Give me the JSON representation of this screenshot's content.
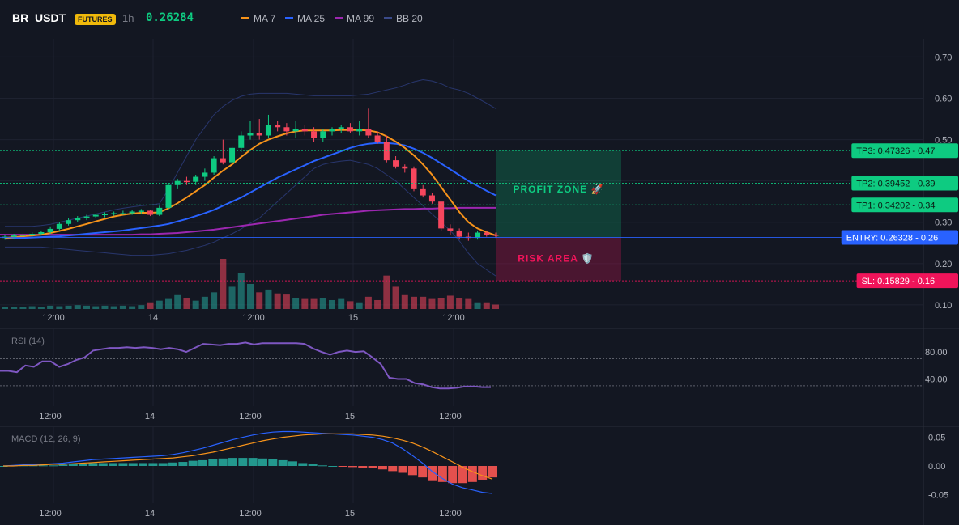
{
  "header": {
    "symbol": "BR_USDT",
    "badge": "FUTURES",
    "timeframe": "1h",
    "last_price": "0.26284",
    "legend": [
      {
        "label": "MA 7",
        "color": "#f7931a"
      },
      {
        "label": "MA 25",
        "color": "#2962ff"
      },
      {
        "label": "MA 99",
        "color": "#9c27b0"
      },
      {
        "label": "BB 20",
        "color": "#3a4a8a"
      }
    ]
  },
  "colors": {
    "up": "#26a69a",
    "up_bright": "#0ecb81",
    "down": "#f6465d",
    "ma7": "#f7931a",
    "ma25": "#2962ff",
    "ma99": "#9c27b0",
    "bb": "#2b3a75",
    "entry": "#2962ff",
    "sl": "#f0145a",
    "tp": "#0ecb81"
  },
  "time_labels": [
    "12:00",
    "14",
    "12:00",
    "15",
    "12:00"
  ],
  "chart_data": [
    {
      "type": "candlestick",
      "title": "",
      "ylim": [
        0.09,
        0.74
      ],
      "y_ticks": [
        "0.70",
        "0.60",
        "0.50",
        "0.40",
        "0.30",
        "0.20",
        "0.10"
      ],
      "candles_ohlc": [
        [
          0.262,
          0.27,
          0.258,
          0.265
        ],
        [
          0.265,
          0.272,
          0.26,
          0.268
        ],
        [
          0.268,
          0.274,
          0.262,
          0.27
        ],
        [
          0.27,
          0.276,
          0.264,
          0.272
        ],
        [
          0.272,
          0.28,
          0.268,
          0.276
        ],
        [
          0.276,
          0.29,
          0.272,
          0.284
        ],
        [
          0.284,
          0.3,
          0.28,
          0.296
        ],
        [
          0.296,
          0.31,
          0.292,
          0.305
        ],
        [
          0.305,
          0.315,
          0.3,
          0.31
        ],
        [
          0.31,
          0.318,
          0.305,
          0.314
        ],
        [
          0.314,
          0.32,
          0.31,
          0.318
        ],
        [
          0.318,
          0.324,
          0.312,
          0.32
        ],
        [
          0.32,
          0.326,
          0.316,
          0.322
        ],
        [
          0.322,
          0.328,
          0.318,
          0.322
        ],
        [
          0.322,
          0.33,
          0.318,
          0.326
        ],
        [
          0.326,
          0.332,
          0.32,
          0.328
        ],
        [
          0.328,
          0.33,
          0.315,
          0.318
        ],
        [
          0.318,
          0.34,
          0.315,
          0.335
        ],
        [
          0.335,
          0.395,
          0.33,
          0.39
        ],
        [
          0.39,
          0.405,
          0.38,
          0.4
        ],
        [
          0.4,
          0.41,
          0.39,
          0.398
        ],
        [
          0.398,
          0.415,
          0.39,
          0.41
        ],
        [
          0.41,
          0.43,
          0.4,
          0.42
        ],
        [
          0.42,
          0.46,
          0.415,
          0.455
        ],
        [
          0.455,
          0.5,
          0.44,
          0.445
        ],
        [
          0.445,
          0.485,
          0.44,
          0.48
        ],
        [
          0.48,
          0.52,
          0.47,
          0.51
        ],
        [
          0.51,
          0.545,
          0.5,
          0.515
        ],
        [
          0.515,
          0.55,
          0.5,
          0.51
        ],
        [
          0.51,
          0.56,
          0.505,
          0.535
        ],
        [
          0.535,
          0.545,
          0.52,
          0.53
        ],
        [
          0.53,
          0.54,
          0.51,
          0.52
        ],
        [
          0.52,
          0.545,
          0.505,
          0.525
        ],
        [
          0.525,
          0.535,
          0.51,
          0.52
        ],
        [
          0.52,
          0.53,
          0.495,
          0.505
        ],
        [
          0.505,
          0.525,
          0.495,
          0.52
        ],
        [
          0.52,
          0.53,
          0.51,
          0.525
        ],
        [
          0.525,
          0.535,
          0.515,
          0.53
        ],
        [
          0.53,
          0.54,
          0.515,
          0.52
        ],
        [
          0.52,
          0.545,
          0.51,
          0.525
        ],
        [
          0.525,
          0.575,
          0.505,
          0.51
        ],
        [
          0.51,
          0.52,
          0.49,
          0.495
        ],
        [
          0.495,
          0.51,
          0.445,
          0.45
        ],
        [
          0.45,
          0.46,
          0.43,
          0.435
        ],
        [
          0.435,
          0.44,
          0.42,
          0.43
        ],
        [
          0.43,
          0.435,
          0.375,
          0.38
        ],
        [
          0.38,
          0.39,
          0.36,
          0.365
        ],
        [
          0.365,
          0.37,
          0.345,
          0.35
        ],
        [
          0.35,
          0.345,
          0.28,
          0.285
        ],
        [
          0.285,
          0.295,
          0.27,
          0.28
        ],
        [
          0.28,
          0.285,
          0.258,
          0.265
        ],
        [
          0.265,
          0.275,
          0.255,
          0.262
        ],
        [
          0.262,
          0.28,
          0.258,
          0.275
        ],
        [
          0.275,
          0.28,
          0.265,
          0.27
        ],
        [
          0.27,
          0.275,
          0.262,
          0.268
        ]
      ],
      "ma7": [
        0.262,
        0.264,
        0.266,
        0.268,
        0.27,
        0.274,
        0.279,
        0.284,
        0.29,
        0.296,
        0.302,
        0.308,
        0.314,
        0.318,
        0.321,
        0.323,
        0.323,
        0.324,
        0.334,
        0.346,
        0.36,
        0.375,
        0.39,
        0.408,
        0.425,
        0.44,
        0.458,
        0.475,
        0.49,
        0.5,
        0.508,
        0.515,
        0.52,
        0.522,
        0.522,
        0.522,
        0.522,
        0.523,
        0.523,
        0.523,
        0.522,
        0.518,
        0.508,
        0.495,
        0.48,
        0.462,
        0.44,
        0.415,
        0.385,
        0.355,
        0.325,
        0.3,
        0.285,
        0.276,
        0.268
      ],
      "ma25": [
        0.26,
        0.261,
        0.262,
        0.263,
        0.264,
        0.265,
        0.266,
        0.268,
        0.27,
        0.272,
        0.274,
        0.276,
        0.278,
        0.28,
        0.283,
        0.286,
        0.289,
        0.292,
        0.296,
        0.302,
        0.308,
        0.315,
        0.322,
        0.33,
        0.34,
        0.35,
        0.36,
        0.372,
        0.384,
        0.396,
        0.408,
        0.418,
        0.428,
        0.438,
        0.448,
        0.456,
        0.464,
        0.472,
        0.48,
        0.486,
        0.49,
        0.492,
        0.492,
        0.49,
        0.486,
        0.478,
        0.468,
        0.456,
        0.442,
        0.428,
        0.414,
        0.4,
        0.388,
        0.376,
        0.365
      ],
      "ma99": [
        0.27,
        0.27,
        0.27,
        0.27,
        0.27,
        0.27,
        0.27,
        0.27,
        0.27,
        0.27,
        0.27,
        0.27,
        0.27,
        0.27,
        0.27,
        0.271,
        0.271,
        0.272,
        0.273,
        0.274,
        0.276,
        0.278,
        0.28,
        0.282,
        0.285,
        0.288,
        0.291,
        0.294,
        0.297,
        0.3,
        0.303,
        0.306,
        0.309,
        0.312,
        0.315,
        0.318,
        0.32,
        0.322,
        0.324,
        0.326,
        0.328,
        0.329,
        0.33,
        0.331,
        0.332,
        0.332,
        0.333,
        0.333,
        0.334,
        0.334,
        0.335,
        0.335,
        0.335,
        0.335,
        0.335
      ],
      "bb_upper": [
        0.29,
        0.29,
        0.29,
        0.29,
        0.292,
        0.295,
        0.3,
        0.305,
        0.31,
        0.315,
        0.32,
        0.325,
        0.33,
        0.334,
        0.337,
        0.34,
        0.342,
        0.345,
        0.38,
        0.42,
        0.46,
        0.5,
        0.53,
        0.56,
        0.58,
        0.595,
        0.605,
        0.61,
        0.612,
        0.612,
        0.612,
        0.612,
        0.61,
        0.608,
        0.606,
        0.606,
        0.606,
        0.606,
        0.606,
        0.608,
        0.61,
        0.615,
        0.62,
        0.625,
        0.632,
        0.64,
        0.645,
        0.642,
        0.635,
        0.625,
        0.62,
        0.612,
        0.6,
        0.588,
        0.575
      ],
      "bb_lower": [
        0.24,
        0.24,
        0.24,
        0.24,
        0.24,
        0.238,
        0.236,
        0.234,
        0.232,
        0.23,
        0.228,
        0.226,
        0.224,
        0.222,
        0.22,
        0.22,
        0.22,
        0.222,
        0.224,
        0.228,
        0.232,
        0.238,
        0.244,
        0.252,
        0.262,
        0.272,
        0.284,
        0.298,
        0.31,
        0.33,
        0.35,
        0.37,
        0.39,
        0.41,
        0.43,
        0.44,
        0.445,
        0.448,
        0.45,
        0.445,
        0.44,
        0.43,
        0.415,
        0.4,
        0.38,
        0.36,
        0.34,
        0.32,
        0.3,
        0.28,
        0.255,
        0.225,
        0.2,
        0.185,
        0.17
      ],
      "volume": [
        4,
        3,
        4,
        5,
        4,
        6,
        5,
        6,
        7,
        6,
        5,
        6,
        5,
        6,
        5,
        7,
        12,
        15,
        18,
        25,
        20,
        15,
        22,
        30,
        90,
        40,
        65,
        45,
        30,
        35,
        28,
        26,
        20,
        18,
        18,
        20,
        16,
        18,
        14,
        12,
        22,
        16,
        60,
        40,
        25,
        22,
        22,
        18,
        20,
        24,
        20,
        18,
        12,
        12,
        8
      ],
      "levels": [
        {
          "name": "TP3",
          "value": 0.47326,
          "label": "TP3: 0.47326",
          "axis": "0.47"
        },
        {
          "name": "TP2",
          "value": 0.39452,
          "label": "TP2: 0.39452",
          "axis": "0.39"
        },
        {
          "name": "TP1",
          "value": 0.34202,
          "label": "TP1: 0.34202",
          "axis": "0.34"
        },
        {
          "name": "ENTRY",
          "value": 0.26328,
          "label": "ENTRY: 0.26328",
          "axis": "0.26"
        },
        {
          "name": "SL",
          "value": 0.15829,
          "label": "SL: 0.15829",
          "axis": "0.16"
        }
      ],
      "zones": {
        "profit": "PROFIT ZONE 🚀",
        "risk": "RISK AREA 🛡️"
      }
    },
    {
      "type": "line",
      "title": "RSI (14)",
      "ylim": [
        0,
        110
      ],
      "y_ticks": [
        "80.00",
        "40.00"
      ],
      "guides": [
        70,
        30
      ],
      "values": [
        52,
        52,
        50,
        60,
        58,
        66,
        66,
        58,
        62,
        68,
        72,
        82,
        84,
        86,
        86,
        87,
        86,
        87,
        86,
        84,
        86,
        84,
        80,
        86,
        92,
        91,
        90,
        92,
        92,
        94,
        91,
        93,
        93,
        93,
        93,
        93,
        92,
        85,
        80,
        76,
        80,
        82,
        80,
        81,
        72,
        62,
        42,
        40,
        40,
        34,
        32,
        28,
        26,
        26,
        27,
        29,
        29,
        28,
        28
      ]
    },
    {
      "type": "line",
      "title": "MACD (12, 26, 9)",
      "ylim": [
        -0.065,
        0.065
      ],
      "y_ticks": [
        "0.05",
        "0.00",
        "-0.05"
      ],
      "macd": [
        0.0,
        0.001,
        0.002,
        0.002,
        0.003,
        0.004,
        0.005,
        0.007,
        0.009,
        0.011,
        0.012,
        0.013,
        0.014,
        0.015,
        0.016,
        0.017,
        0.018,
        0.02,
        0.023,
        0.027,
        0.031,
        0.036,
        0.041,
        0.046,
        0.05,
        0.054,
        0.057,
        0.059,
        0.06,
        0.06,
        0.059,
        0.058,
        0.057,
        0.056,
        0.055,
        0.054,
        0.052,
        0.05,
        0.046,
        0.04,
        0.03,
        0.018,
        0.005,
        -0.01,
        -0.022,
        -0.032,
        -0.038,
        -0.042,
        -0.046,
        -0.048
      ],
      "signal": [
        0.0,
        0.0,
        0.001,
        0.001,
        0.002,
        0.003,
        0.003,
        0.004,
        0.005,
        0.006,
        0.007,
        0.008,
        0.009,
        0.01,
        0.011,
        0.012,
        0.013,
        0.014,
        0.016,
        0.018,
        0.021,
        0.024,
        0.028,
        0.032,
        0.036,
        0.04,
        0.044,
        0.047,
        0.05,
        0.052,
        0.054,
        0.055,
        0.056,
        0.056,
        0.056,
        0.056,
        0.055,
        0.054,
        0.052,
        0.049,
        0.045,
        0.04,
        0.033,
        0.025,
        0.016,
        0.007,
        -0.002,
        -0.01,
        -0.017,
        -0.023
      ],
      "histogram": [
        0.0,
        0.001,
        0.001,
        0.001,
        0.001,
        0.001,
        0.002,
        0.003,
        0.004,
        0.005,
        0.005,
        0.005,
        0.005,
        0.005,
        0.005,
        0.005,
        0.005,
        0.006,
        0.007,
        0.009,
        0.01,
        0.012,
        0.013,
        0.014,
        0.014,
        0.014,
        0.013,
        0.012,
        0.01,
        0.008,
        0.005,
        0.003,
        0.001,
        0.0,
        -0.001,
        -0.002,
        -0.003,
        -0.004,
        -0.006,
        -0.009,
        -0.012,
        -0.016,
        -0.02,
        -0.025,
        -0.028,
        -0.03,
        -0.03,
        -0.028,
        -0.024,
        -0.02
      ]
    }
  ]
}
